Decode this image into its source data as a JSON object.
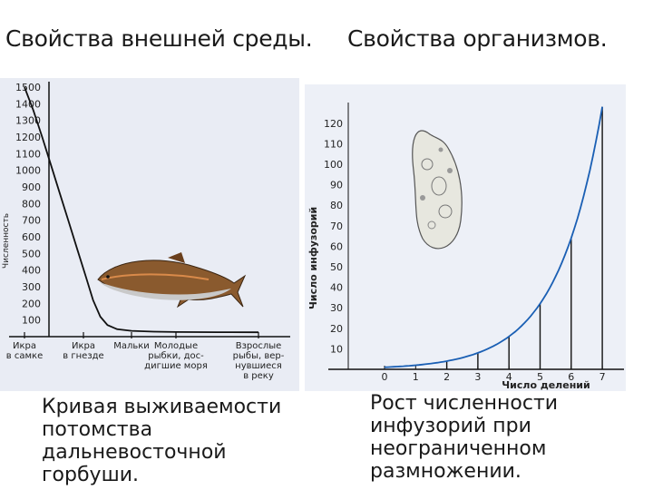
{
  "headings": {
    "left": "Свойства внешней среды.",
    "right": "Свойства организмов."
  },
  "captions": {
    "left": [
      "Кривая выживаемости",
      "потомства",
      "дальневосточной",
      "горбуши."
    ],
    "right": [
      "Рост численности",
      "инфузорий при",
      "неограниченном",
      "размножении."
    ]
  },
  "chart_data": [
    {
      "type": "line",
      "ylabel": "Численность",
      "xlabel": "",
      "ylim": [
        0,
        1500
      ],
      "y_ticks": [
        100,
        200,
        300,
        400,
        500,
        600,
        700,
        800,
        900,
        1000,
        1100,
        1200,
        1300,
        1400,
        1500
      ],
      "categories": [
        [
          "Икра",
          "в самке"
        ],
        [
          "Икра",
          "в гнезде"
        ],
        [
          "Мальки"
        ],
        [
          "Молодые",
          "рыбки, дос-",
          "дигшие моря"
        ],
        [
          "Взрослые",
          "рыбы, вер-",
          "нувшиеся",
          "в реку"
        ]
      ],
      "series": [
        {
          "x": [
            0,
            0.15,
            0.3,
            0.45,
            0.6,
            0.75,
            0.9,
            1.05,
            1.2,
            1.35,
            1.5,
            1.7,
            2.0,
            2.5,
            3.0,
            3.5,
            4.0
          ],
          "values": [
            1500,
            1360,
            1200,
            1030,
            860,
            690,
            520,
            360,
            220,
            120,
            70,
            45,
            35,
            30,
            28,
            27,
            26
          ]
        }
      ],
      "grid": false,
      "annotation_image": "fish-illustration"
    },
    {
      "type": "line",
      "ylabel": "Число инфузорий",
      "xlabel": "Число делений",
      "xlim": [
        0,
        7
      ],
      "ylim": [
        0,
        128
      ],
      "x_ticks": [
        0,
        1,
        2,
        3,
        4,
        5,
        6,
        7
      ],
      "y_ticks": [
        10,
        20,
        30,
        40,
        50,
        60,
        70,
        80,
        90,
        100,
        110,
        120
      ],
      "series": [
        {
          "x": [
            0,
            1,
            2,
            3,
            4,
            5,
            6,
            7
          ],
          "values": [
            1,
            2,
            4,
            8,
            16,
            32,
            64,
            128
          ]
        }
      ],
      "vertical_lines_at": [
        2,
        3,
        4,
        5,
        6,
        7
      ],
      "grid": false,
      "annotation_image": "paramecium-illustration"
    }
  ]
}
